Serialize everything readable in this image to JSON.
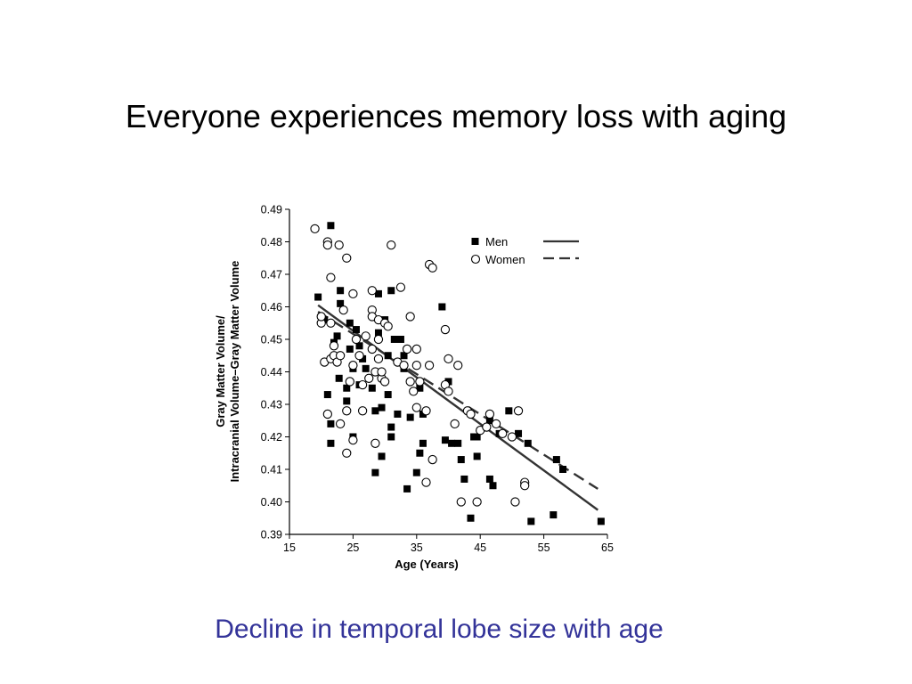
{
  "slide": {
    "title": "Everyone experiences memory loss with aging",
    "caption": "Decline in temporal lobe size with age",
    "caption_color": "#333399",
    "title_color": "#000000"
  },
  "chart_data": {
    "type": "scatter",
    "xlabel": "Age (Years)",
    "ylabel_line1": "Gray Matter Volume/",
    "ylabel_line2": "Intracranial Volume–Gray Matter Volume",
    "xlim": [
      15,
      65
    ],
    "ylim": [
      0.39,
      0.49
    ],
    "x_ticks": [
      "15",
      "25",
      "35",
      "45",
      "55",
      "65"
    ],
    "y_ticks": [
      "0.39",
      "0.40",
      "0.41",
      "0.42",
      "0.43",
      "0.44",
      "0.45",
      "0.46",
      "0.47",
      "0.48",
      "0.49"
    ],
    "legend": {
      "position": "top-right",
      "entries": [
        {
          "label": "Men",
          "marker": "filled-square",
          "line": "solid"
        },
        {
          "label": "Women",
          "marker": "open-circle",
          "line": "dashed"
        }
      ]
    },
    "series": [
      {
        "name": "Men",
        "marker": "filled-square",
        "points": [
          [
            19.5,
            0.463
          ],
          [
            21.5,
            0.485
          ],
          [
            20.5,
            0.456
          ],
          [
            21.0,
            0.433
          ],
          [
            21.5,
            0.424
          ],
          [
            21.5,
            0.418
          ],
          [
            22.0,
            0.449
          ],
          [
            22.5,
            0.451
          ],
          [
            22.8,
            0.438
          ],
          [
            23.0,
            0.465
          ],
          [
            23.0,
            0.461
          ],
          [
            24.0,
            0.435
          ],
          [
            24.0,
            0.431
          ],
          [
            24.5,
            0.455
          ],
          [
            24.5,
            0.447
          ],
          [
            25.0,
            0.441
          ],
          [
            25.0,
            0.42
          ],
          [
            25.5,
            0.453
          ],
          [
            26.0,
            0.448
          ],
          [
            26.0,
            0.436
          ],
          [
            26.5,
            0.444
          ],
          [
            27.0,
            0.441
          ],
          [
            28.0,
            0.435
          ],
          [
            28.5,
            0.428
          ],
          [
            28.5,
            0.409
          ],
          [
            29.0,
            0.464
          ],
          [
            29.0,
            0.452
          ],
          [
            29.5,
            0.414
          ],
          [
            29.5,
            0.429
          ],
          [
            30.0,
            0.456
          ],
          [
            30.5,
            0.445
          ],
          [
            30.5,
            0.433
          ],
          [
            31.0,
            0.465
          ],
          [
            31.0,
            0.423
          ],
          [
            31.0,
            0.42
          ],
          [
            31.5,
            0.45
          ],
          [
            32.0,
            0.427
          ],
          [
            32.5,
            0.45
          ],
          [
            33.0,
            0.445
          ],
          [
            33.0,
            0.441
          ],
          [
            33.5,
            0.404
          ],
          [
            34.0,
            0.426
          ],
          [
            35.0,
            0.409
          ],
          [
            35.5,
            0.435
          ],
          [
            35.5,
            0.415
          ],
          [
            36.0,
            0.427
          ],
          [
            36.0,
            0.418
          ],
          [
            39.0,
            0.46
          ],
          [
            39.5,
            0.419
          ],
          [
            40.0,
            0.437
          ],
          [
            40.5,
            0.418
          ],
          [
            41.5,
            0.418
          ],
          [
            42.0,
            0.413
          ],
          [
            42.5,
            0.407
          ],
          [
            43.5,
            0.395
          ],
          [
            44.0,
            0.42
          ],
          [
            44.5,
            0.42
          ],
          [
            44.5,
            0.414
          ],
          [
            46.5,
            0.425
          ],
          [
            46.5,
            0.407
          ],
          [
            47.0,
            0.405
          ],
          [
            48.0,
            0.421
          ],
          [
            49.5,
            0.428
          ],
          [
            51.0,
            0.421
          ],
          [
            52.5,
            0.418
          ],
          [
            53.0,
            0.394
          ],
          [
            56.5,
            0.396
          ],
          [
            57.0,
            0.413
          ],
          [
            58.0,
            0.41
          ],
          [
            64.0,
            0.394
          ]
        ],
        "trend": {
          "style": "solid",
          "from": [
            19.5,
            0.4605
          ],
          "to": [
            63.5,
            0.3975
          ]
        }
      },
      {
        "name": "Women",
        "marker": "open-circle",
        "points": [
          [
            19.0,
            0.484
          ],
          [
            20.0,
            0.455
          ],
          [
            20.0,
            0.457
          ],
          [
            20.5,
            0.443
          ],
          [
            21.0,
            0.48
          ],
          [
            21.0,
            0.479
          ],
          [
            21.0,
            0.427
          ],
          [
            21.5,
            0.469
          ],
          [
            21.5,
            0.455
          ],
          [
            21.5,
            0.444
          ],
          [
            22.0,
            0.448
          ],
          [
            22.0,
            0.445
          ],
          [
            22.5,
            0.443
          ],
          [
            22.8,
            0.479
          ],
          [
            23.0,
            0.445
          ],
          [
            23.0,
            0.424
          ],
          [
            23.5,
            0.459
          ],
          [
            24.0,
            0.475
          ],
          [
            24.0,
            0.428
          ],
          [
            24.0,
            0.415
          ],
          [
            24.5,
            0.437
          ],
          [
            25.0,
            0.464
          ],
          [
            25.0,
            0.442
          ],
          [
            25.0,
            0.419
          ],
          [
            25.5,
            0.45
          ],
          [
            26.0,
            0.445
          ],
          [
            26.5,
            0.436
          ],
          [
            26.5,
            0.428
          ],
          [
            27.0,
            0.451
          ],
          [
            27.5,
            0.438
          ],
          [
            28.0,
            0.465
          ],
          [
            28.0,
            0.459
          ],
          [
            28.0,
            0.457
          ],
          [
            28.0,
            0.447
          ],
          [
            28.5,
            0.44
          ],
          [
            28.5,
            0.418
          ],
          [
            29.0,
            0.456
          ],
          [
            29.0,
            0.45
          ],
          [
            29.0,
            0.444
          ],
          [
            29.5,
            0.438
          ],
          [
            29.5,
            0.44
          ],
          [
            30.0,
            0.437
          ],
          [
            30.0,
            0.455
          ],
          [
            30.5,
            0.454
          ],
          [
            31.0,
            0.479
          ],
          [
            32.0,
            0.443
          ],
          [
            32.5,
            0.466
          ],
          [
            33.0,
            0.442
          ],
          [
            33.5,
            0.447
          ],
          [
            34.0,
            0.457
          ],
          [
            34.0,
            0.437
          ],
          [
            34.5,
            0.434
          ],
          [
            35.0,
            0.447
          ],
          [
            35.0,
            0.442
          ],
          [
            35.0,
            0.429
          ],
          [
            35.5,
            0.437
          ],
          [
            36.5,
            0.428
          ],
          [
            36.5,
            0.406
          ],
          [
            37.0,
            0.473
          ],
          [
            37.0,
            0.442
          ],
          [
            37.5,
            0.472
          ],
          [
            37.5,
            0.413
          ],
          [
            39.5,
            0.453
          ],
          [
            39.5,
            0.436
          ],
          [
            40.0,
            0.444
          ],
          [
            40.0,
            0.434
          ],
          [
            41.0,
            0.424
          ],
          [
            41.5,
            0.442
          ],
          [
            42.0,
            0.4
          ],
          [
            43.0,
            0.428
          ],
          [
            43.5,
            0.427
          ],
          [
            44.5,
            0.4
          ],
          [
            45.0,
            0.422
          ],
          [
            46.0,
            0.423
          ],
          [
            46.5,
            0.427
          ],
          [
            47.5,
            0.424
          ],
          [
            48.5,
            0.421
          ],
          [
            50.0,
            0.42
          ],
          [
            50.5,
            0.4
          ],
          [
            51.0,
            0.428
          ],
          [
            52.0,
            0.406
          ],
          [
            52.0,
            0.405
          ]
        ],
        "trend": {
          "style": "dashed",
          "from": [
            19.5,
            0.4585
          ],
          "to": [
            63.5,
            0.404
          ]
        }
      }
    ]
  }
}
